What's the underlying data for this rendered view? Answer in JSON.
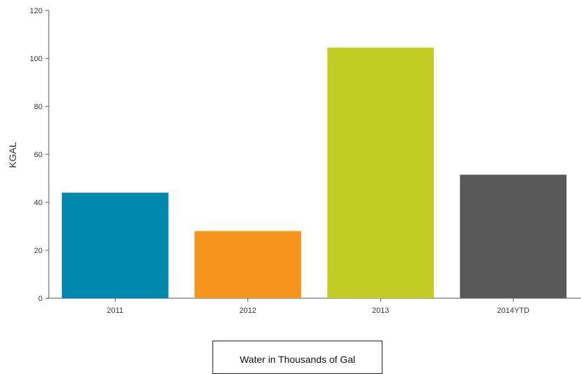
{
  "chart_data": {
    "type": "bar",
    "categories": [
      "2011",
      "2012",
      "2013",
      "2014YTD"
    ],
    "values": [
      44,
      28,
      104.5,
      51.5
    ],
    "colors": [
      "#0087ad",
      "#f7941e",
      "#c1cd23",
      "#595959"
    ],
    "ylabel": "KGAL",
    "xlabel": "",
    "ylim": [
      0,
      120
    ],
    "yticks": [
      0,
      20,
      40,
      60,
      80,
      100,
      120
    ],
    "grid": false,
    "legend": "none"
  },
  "caption": "Water in Thousands of Gal"
}
